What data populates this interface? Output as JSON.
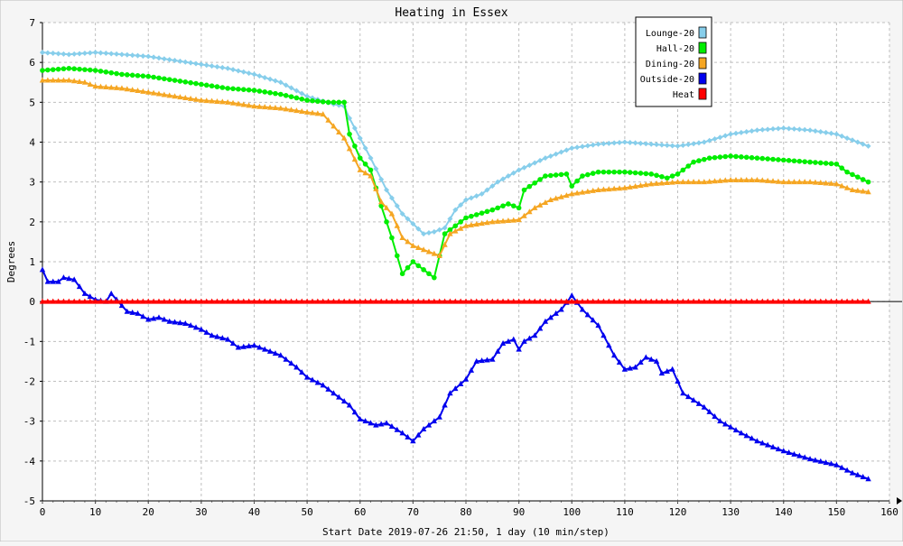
{
  "chart_data": {
    "type": "line",
    "title": "Heating in Essex",
    "xlabel": "Start Date 2019-07-26 21:50, 1 day (10 min/step)",
    "ylabel": "Degrees",
    "xlim": [
      0,
      160
    ],
    "ylim": [
      -5,
      7
    ],
    "xticks": [
      0,
      10,
      20,
      30,
      40,
      50,
      60,
      70,
      80,
      90,
      100,
      110,
      120,
      130,
      140,
      150,
      160
    ],
    "yticks": [
      -5,
      -4,
      -3,
      -2,
      -1,
      0,
      1,
      2,
      3,
      4,
      5,
      6,
      7
    ],
    "grid": true,
    "legend_position": "top-right",
    "series": [
      {
        "name": "Lounge-20",
        "color": "#87ceeb",
        "marker": "diamond",
        "points": [
          [
            0,
            6.25
          ],
          [
            5,
            6.2
          ],
          [
            10,
            6.25
          ],
          [
            15,
            6.2
          ],
          [
            20,
            6.15
          ],
          [
            25,
            6.05
          ],
          [
            30,
            5.95
          ],
          [
            35,
            5.85
          ],
          [
            40,
            5.7
          ],
          [
            45,
            5.5
          ],
          [
            50,
            5.15
          ],
          [
            55,
            4.95
          ],
          [
            57,
            4.9
          ],
          [
            58,
            4.6
          ],
          [
            60,
            4.1
          ],
          [
            62,
            3.6
          ],
          [
            65,
            2.8
          ],
          [
            68,
            2.2
          ],
          [
            70,
            1.95
          ],
          [
            72,
            1.7
          ],
          [
            74,
            1.75
          ],
          [
            76,
            1.85
          ],
          [
            78,
            2.3
          ],
          [
            80,
            2.55
          ],
          [
            83,
            2.7
          ],
          [
            86,
            3.0
          ],
          [
            90,
            3.3
          ],
          [
            95,
            3.6
          ],
          [
            100,
            3.85
          ],
          [
            105,
            3.95
          ],
          [
            110,
            4.0
          ],
          [
            115,
            3.95
          ],
          [
            120,
            3.9
          ],
          [
            125,
            4.0
          ],
          [
            130,
            4.2
          ],
          [
            135,
            4.3
          ],
          [
            140,
            4.35
          ],
          [
            145,
            4.3
          ],
          [
            150,
            4.2
          ],
          [
            153,
            4.05
          ],
          [
            156,
            3.9
          ]
        ]
      },
      {
        "name": "Hall-20",
        "color": "#00ee00",
        "marker": "circle",
        "points": [
          [
            0,
            5.8
          ],
          [
            5,
            5.85
          ],
          [
            10,
            5.8
          ],
          [
            15,
            5.7
          ],
          [
            20,
            5.65
          ],
          [
            25,
            5.55
          ],
          [
            30,
            5.45
          ],
          [
            35,
            5.35
          ],
          [
            40,
            5.3
          ],
          [
            45,
            5.2
          ],
          [
            50,
            5.05
          ],
          [
            54,
            5.0
          ],
          [
            57,
            5.0
          ],
          [
            58,
            4.2
          ],
          [
            60,
            3.6
          ],
          [
            62,
            3.3
          ],
          [
            64,
            2.4
          ],
          [
            66,
            1.6
          ],
          [
            68,
            0.7
          ],
          [
            70,
            1.0
          ],
          [
            72,
            0.8
          ],
          [
            74,
            0.6
          ],
          [
            76,
            1.7
          ],
          [
            78,
            1.9
          ],
          [
            80,
            2.1
          ],
          [
            85,
            2.3
          ],
          [
            88,
            2.45
          ],
          [
            90,
            2.35
          ],
          [
            91,
            2.8
          ],
          [
            95,
            3.15
          ],
          [
            99,
            3.2
          ],
          [
            100,
            2.9
          ],
          [
            102,
            3.15
          ],
          [
            105,
            3.25
          ],
          [
            110,
            3.25
          ],
          [
            115,
            3.2
          ],
          [
            118,
            3.1
          ],
          [
            120,
            3.2
          ],
          [
            123,
            3.5
          ],
          [
            126,
            3.6
          ],
          [
            130,
            3.65
          ],
          [
            135,
            3.6
          ],
          [
            140,
            3.55
          ],
          [
            145,
            3.5
          ],
          [
            150,
            3.45
          ],
          [
            152,
            3.25
          ],
          [
            156,
            3.0
          ]
        ]
      },
      {
        "name": "Dining-20",
        "color": "#f5a623",
        "marker": "triangle",
        "points": [
          [
            0,
            5.55
          ],
          [
            5,
            5.55
          ],
          [
            8,
            5.5
          ],
          [
            10,
            5.4
          ],
          [
            15,
            5.35
          ],
          [
            20,
            5.25
          ],
          [
            25,
            5.15
          ],
          [
            30,
            5.05
          ],
          [
            35,
            5.0
          ],
          [
            40,
            4.9
          ],
          [
            45,
            4.85
          ],
          [
            50,
            4.75
          ],
          [
            53,
            4.7
          ],
          [
            55,
            4.4
          ],
          [
            57,
            4.1
          ],
          [
            60,
            3.3
          ],
          [
            62,
            3.15
          ],
          [
            64,
            2.5
          ],
          [
            66,
            2.2
          ],
          [
            68,
            1.6
          ],
          [
            70,
            1.4
          ],
          [
            72,
            1.3
          ],
          [
            75,
            1.15
          ],
          [
            77,
            1.7
          ],
          [
            80,
            1.9
          ],
          [
            85,
            2.0
          ],
          [
            90,
            2.05
          ],
          [
            93,
            2.35
          ],
          [
            96,
            2.55
          ],
          [
            100,
            2.7
          ],
          [
            105,
            2.8
          ],
          [
            110,
            2.85
          ],
          [
            115,
            2.95
          ],
          [
            120,
            3.0
          ],
          [
            125,
            3.0
          ],
          [
            130,
            3.05
          ],
          [
            135,
            3.05
          ],
          [
            140,
            3.0
          ],
          [
            145,
            3.0
          ],
          [
            150,
            2.95
          ],
          [
            153,
            2.8
          ],
          [
            156,
            2.75
          ]
        ]
      },
      {
        "name": "Outside-20",
        "color": "#0000ee",
        "marker": "triangle",
        "points": [
          [
            0,
            0.8
          ],
          [
            1,
            0.5
          ],
          [
            3,
            0.5
          ],
          [
            4,
            0.6
          ],
          [
            6,
            0.55
          ],
          [
            8,
            0.2
          ],
          [
            10,
            0.05
          ],
          [
            12,
            0.0
          ],
          [
            13,
            0.2
          ],
          [
            14,
            0.05
          ],
          [
            16,
            -0.25
          ],
          [
            18,
            -0.3
          ],
          [
            20,
            -0.45
          ],
          [
            22,
            -0.4
          ],
          [
            24,
            -0.5
          ],
          [
            27,
            -0.55
          ],
          [
            30,
            -0.7
          ],
          [
            32,
            -0.85
          ],
          [
            35,
            -0.95
          ],
          [
            37,
            -1.15
          ],
          [
            40,
            -1.1
          ],
          [
            42,
            -1.2
          ],
          [
            45,
            -1.35
          ],
          [
            48,
            -1.65
          ],
          [
            50,
            -1.9
          ],
          [
            53,
            -2.1
          ],
          [
            55,
            -2.3
          ],
          [
            58,
            -2.6
          ],
          [
            60,
            -2.95
          ],
          [
            63,
            -3.1
          ],
          [
            65,
            -3.05
          ],
          [
            68,
            -3.3
          ],
          [
            70,
            -3.5
          ],
          [
            72,
            -3.2
          ],
          [
            75,
            -2.9
          ],
          [
            77,
            -2.3
          ],
          [
            80,
            -1.95
          ],
          [
            82,
            -1.5
          ],
          [
            85,
            -1.45
          ],
          [
            87,
            -1.05
          ],
          [
            89,
            -0.95
          ],
          [
            90,
            -1.2
          ],
          [
            91,
            -1.0
          ],
          [
            93,
            -0.85
          ],
          [
            95,
            -0.5
          ],
          [
            98,
            -0.2
          ],
          [
            100,
            0.15
          ],
          [
            102,
            -0.2
          ],
          [
            105,
            -0.6
          ],
          [
            108,
            -1.35
          ],
          [
            110,
            -1.7
          ],
          [
            112,
            -1.65
          ],
          [
            114,
            -1.4
          ],
          [
            116,
            -1.5
          ],
          [
            117,
            -1.8
          ],
          [
            119,
            -1.7
          ],
          [
            121,
            -2.3
          ],
          [
            125,
            -2.65
          ],
          [
            128,
            -3.0
          ],
          [
            132,
            -3.3
          ],
          [
            135,
            -3.5
          ],
          [
            140,
            -3.75
          ],
          [
            145,
            -3.95
          ],
          [
            150,
            -4.1
          ],
          [
            153,
            -4.3
          ],
          [
            156,
            -4.45
          ]
        ]
      },
      {
        "name": "Heat",
        "color": "#ff0000",
        "marker": "triangle",
        "points": [
          [
            0,
            0
          ],
          [
            156,
            0
          ]
        ]
      }
    ]
  }
}
